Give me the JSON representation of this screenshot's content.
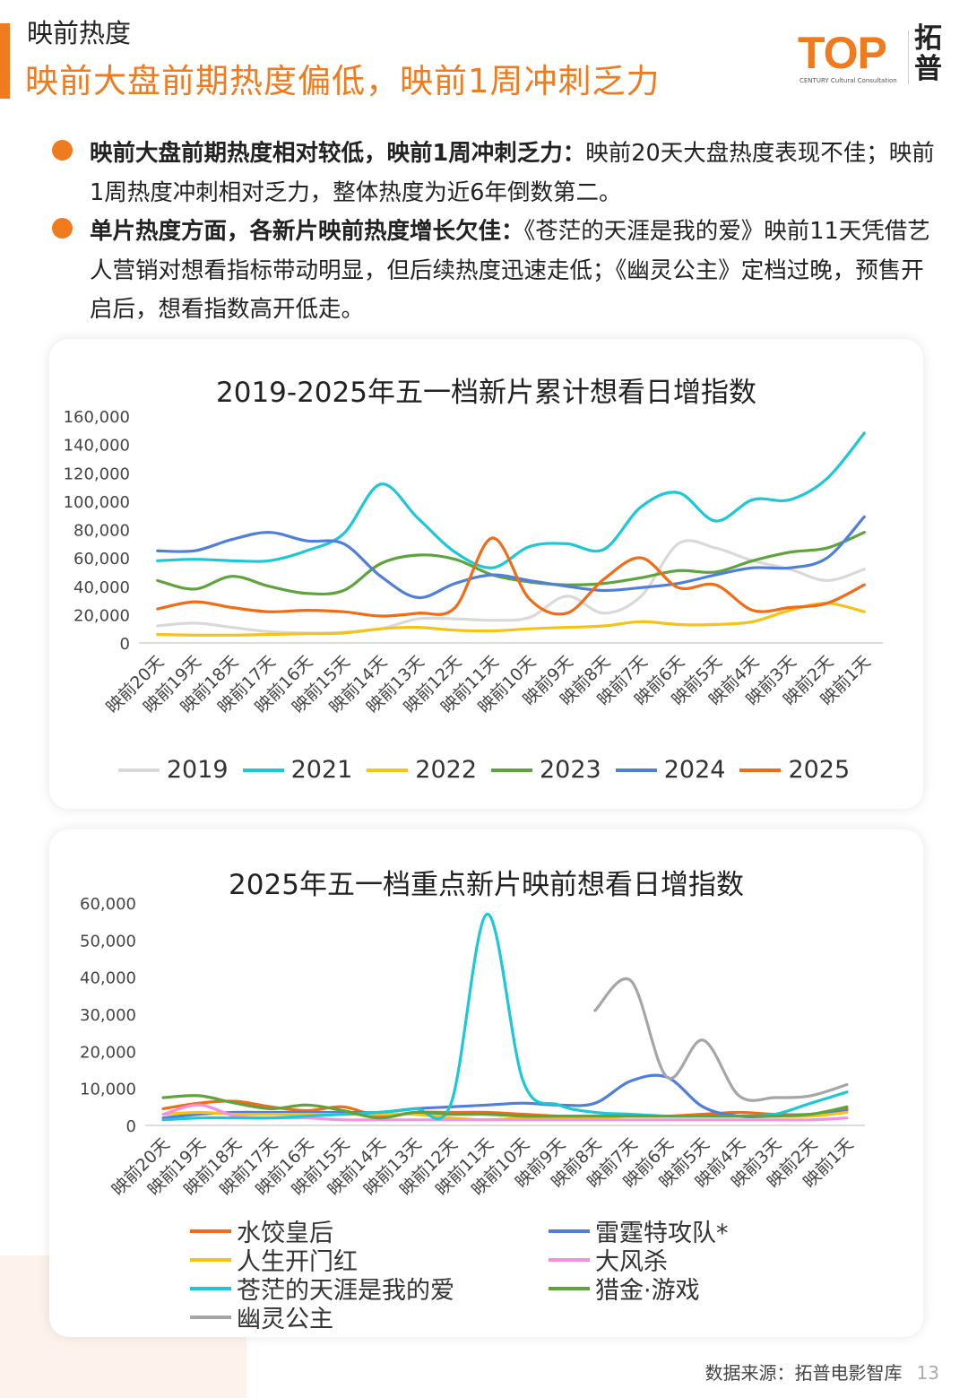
{
  "header": {
    "section_label": "映前热度",
    "headline": "映前大盘前期热度偏低，映前1周冲刺乏力"
  },
  "logo": {
    "word": "TOP",
    "sub": "CENTURY Cultural Consultation",
    "cn": "拓普"
  },
  "bullets": [
    {
      "bold": "映前大盘前期热度相对较低，映前1周冲刺乏力：",
      "text": "映前20天大盘热度表现不佳；映前1周热度冲刺相对乏力，整体热度为近6年倒数第二。"
    },
    {
      "bold": "单片热度方面，各新片映前热度增长欠佳：",
      "text": "《苍茫的天涯是我的爱》映前11天凭借艺人营销对想看指标带动明显，但后续热度迅速走低；《幽灵公主》定档过晚，预售开启后，想看指数高开低走。"
    }
  ],
  "source": {
    "text": "数据来源：拓普电影智库",
    "page": "13"
  },
  "chart_data": [
    {
      "type": "line",
      "title": "2019-2025年五一档新片累计想看日增指数",
      "categories": [
        "映前20天",
        "映前19天",
        "映前18天",
        "映前17天",
        "映前16天",
        "映前15天",
        "映前14天",
        "映前13天",
        "映前12天",
        "映前11天",
        "映前10天",
        "映前9天",
        "映前8天",
        "映前7天",
        "映前6天",
        "映前5天",
        "映前4天",
        "映前3天",
        "映前2天",
        "映前1天"
      ],
      "ylim": [
        0,
        160000
      ],
      "yticks": [
        0,
        20000,
        40000,
        60000,
        80000,
        100000,
        120000,
        140000,
        160000
      ],
      "ytick_labels": [
        "0",
        "20,000",
        "40,000",
        "60,000",
        "80,000",
        "100,000",
        "120,000",
        "140,000",
        "160,000"
      ],
      "legend": "bottom",
      "series": [
        {
          "name": "2019",
          "color": "#d9d9d9",
          "values": [
            12000,
            14000,
            11000,
            8000,
            7000,
            7500,
            10000,
            17000,
            17000,
            16000,
            18000,
            33000,
            21000,
            33000,
            70000,
            67000,
            58000,
            52000,
            44000,
            52000
          ]
        },
        {
          "name": "2021",
          "color": "#1ac8d6",
          "values": [
            58000,
            59000,
            58000,
            58000,
            65000,
            77000,
            112000,
            88000,
            64000,
            53000,
            68000,
            70000,
            66000,
            96000,
            106000,
            86000,
            101000,
            101000,
            116000,
            148000
          ]
        },
        {
          "name": "2022",
          "color": "#f5c218",
          "values": [
            6000,
            5500,
            5500,
            6000,
            6500,
            7000,
            10000,
            11000,
            9000,
            8500,
            10000,
            11000,
            12000,
            15000,
            13000,
            13000,
            15000,
            23000,
            28000,
            22000
          ]
        },
        {
          "name": "2023",
          "color": "#5fa33c",
          "values": [
            44000,
            38000,
            47000,
            40000,
            35000,
            37000,
            56000,
            62000,
            59000,
            48000,
            43000,
            41000,
            42000,
            46000,
            51000,
            50000,
            58000,
            64000,
            67000,
            78000
          ]
        },
        {
          "name": "2024",
          "color": "#4f7fdb",
          "values": [
            65000,
            65000,
            73000,
            78000,
            72000,
            70000,
            47000,
            32000,
            42000,
            48000,
            44000,
            40000,
            37000,
            39000,
            42000,
            48000,
            53000,
            53000,
            60000,
            89000
          ]
        },
        {
          "name": "2025",
          "color": "#f26b16",
          "values": [
            24000,
            29000,
            25000,
            22000,
            23000,
            22000,
            19000,
            21000,
            25000,
            74000,
            31000,
            21000,
            45000,
            60000,
            39000,
            41000,
            23000,
            25000,
            28000,
            41000
          ]
        }
      ]
    },
    {
      "type": "line",
      "title": "2025年五一档重点新片映前想看日增指数",
      "categories": [
        "映前20天",
        "映前19天",
        "映前18天",
        "映前17天",
        "映前16天",
        "映前15天",
        "映前14天",
        "映前13天",
        "映前12天",
        "映前11天",
        "映前10天",
        "映前9天",
        "映前8天",
        "映前7天",
        "映前6天",
        "映前5天",
        "映前4天",
        "映前3天",
        "映前2天",
        "映前1天"
      ],
      "ylim": [
        0,
        60000
      ],
      "yticks": [
        0,
        10000,
        20000,
        30000,
        40000,
        50000,
        60000
      ],
      "ytick_labels": [
        "0",
        "10,000",
        "20,000",
        "30,000",
        "40,000",
        "50,000",
        "60,000"
      ],
      "legend": "bottom",
      "series": [
        {
          "name": "水饺皇后",
          "color": "#f26b16",
          "values": [
            4500,
            6000,
            6500,
            5000,
            4000,
            5000,
            2500,
            3500,
            3500,
            3500,
            3000,
            2500,
            2500,
            2500,
            2500,
            3000,
            3500,
            3000,
            3000,
            4500
          ]
        },
        {
          "name": "雷霆特攻队*",
          "color": "#4f7fdb",
          "values": [
            2000,
            3000,
            3500,
            3500,
            3500,
            3500,
            3500,
            4500,
            5000,
            5500,
            6000,
            5500,
            6000,
            12000,
            13000,
            5000,
            2500,
            2500,
            3000,
            4000
          ]
        },
        {
          "name": "人生开门红",
          "color": "#f5c218",
          "values": [
            3000,
            3500,
            3000,
            3000,
            3000,
            3000,
            3000,
            3000,
            2000,
            1500,
            2000,
            2000,
            2000,
            2500,
            2500,
            2500,
            2500,
            2500,
            2500,
            3500
          ]
        },
        {
          "name": "大风杀",
          "color": "#f290e6",
          "values": [
            3000,
            5500,
            2500,
            2000,
            2000,
            1500,
            1500,
            1500,
            1500,
            1500,
            1500,
            1500,
            1500,
            1500,
            1500,
            1500,
            1500,
            1500,
            1500,
            2000
          ]
        },
        {
          "name": "苍茫的天涯是我的爱",
          "color": "#1ac8d6",
          "values": [
            1500,
            2000,
            2000,
            2000,
            2500,
            3000,
            3500,
            4500,
            6000,
            57000,
            12000,
            5500,
            3500,
            3000,
            2500,
            2500,
            2500,
            3000,
            6000,
            9000
          ]
        },
        {
          "name": "猎金·游戏",
          "color": "#5fa33c",
          "values": [
            7500,
            8000,
            6000,
            4500,
            5500,
            4000,
            2000,
            3500,
            3000,
            3000,
            2500,
            2500,
            2500,
            2500,
            2500,
            2500,
            2500,
            2500,
            3000,
            5000
          ]
        },
        {
          "name": "幽灵公主",
          "color": "#a6a6a6",
          "values": [
            null,
            null,
            null,
            null,
            null,
            null,
            null,
            null,
            null,
            null,
            null,
            null,
            31000,
            39000,
            13000,
            23000,
            8000,
            7500,
            8000,
            11000
          ]
        }
      ]
    }
  ]
}
